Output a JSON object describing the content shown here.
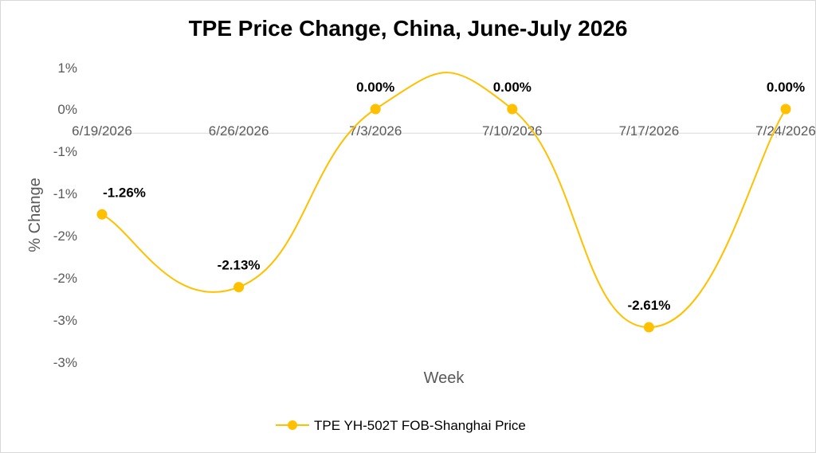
{
  "chart_data": {
    "type": "line",
    "title": "TPE Price Change, China, June-July 2026",
    "xlabel": "Week",
    "ylabel": "% Change",
    "categories": [
      "6/19/2026",
      "6/26/2026",
      "7/3/2026",
      "7/10/2026",
      "7/17/2026",
      "7/24/2026"
    ],
    "y_tick_labels": [
      "1%",
      "0%",
      "-1%",
      "-1%",
      "-2%",
      "-2%",
      "-3%",
      "-3%"
    ],
    "ylim": [
      -3.5,
      1.0
    ],
    "grid": false,
    "legend_position": "bottom",
    "smooth": true,
    "series": [
      {
        "name": "TPE YH-502T FOB-Shanghai Price",
        "color": "#FFC000",
        "values": [
          -1.26,
          -2.13,
          0.0,
          0.0,
          -2.61,
          0.0
        ],
        "data_labels": [
          "-1.26%",
          "-2.13%",
          "0.00%",
          "0.00%",
          "-2.61%",
          "0.00%"
        ]
      }
    ]
  }
}
